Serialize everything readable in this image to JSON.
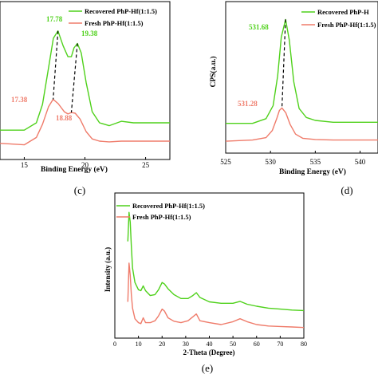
{
  "chart_data": [
    {
      "type": "line",
      "panel_label": "(c)",
      "xlabel": "Binding Energy (eV)",
      "ylabel": "",
      "xlim": [
        13,
        27
      ],
      "xticks": [
        "15",
        "20",
        "25"
      ],
      "legend_position": "top-right",
      "series": [
        {
          "name": "Recovered PhP-Hf(1:1.5)",
          "color": "#4fd11b",
          "x": [
            13,
            15,
            16,
            16.5,
            17.0,
            17.4,
            17.78,
            18.2,
            18.6,
            18.88,
            19.1,
            19.38,
            19.7,
            20.1,
            20.6,
            21.2,
            22,
            23,
            24,
            25,
            26,
            27
          ],
          "y": [
            0.2,
            0.2,
            0.3,
            0.55,
            1.05,
            1.45,
            1.55,
            1.35,
            1.2,
            1.2,
            1.32,
            1.38,
            1.25,
            0.85,
            0.45,
            0.3,
            0.26,
            0.32,
            0.3,
            0.3,
            0.3,
            0.3
          ]
        },
        {
          "name": "Fresh PhP-Hf(1:1.5)",
          "color": "#ef7b6a",
          "x": [
            13,
            15,
            16,
            16.5,
            17.0,
            17.38,
            17.8,
            18.3,
            18.6,
            18.88,
            19.2,
            19.6,
            20.1,
            20.6,
            21.2,
            22,
            23,
            24,
            25,
            26,
            27
          ],
          "y": [
            0.02,
            0.0,
            0.1,
            0.28,
            0.52,
            0.62,
            0.56,
            0.45,
            0.42,
            0.44,
            0.43,
            0.35,
            0.18,
            0.08,
            0.05,
            0.04,
            0.05,
            0.05,
            0.05,
            0.05,
            0.05
          ]
        }
      ],
      "annotations": [
        {
          "text": "17.78",
          "series": "Recovered PhP-Hf(1:1.5)"
        },
        {
          "text": "19.38",
          "series": "Recovered PhP-Hf(1:1.5)"
        },
        {
          "text": "17.38",
          "series": "Fresh PhP-Hf(1:1.5)"
        },
        {
          "text": "18.88",
          "series": "Fresh PhP-Hf(1:1.5)"
        }
      ]
    },
    {
      "type": "line",
      "panel_label": "(d)",
      "xlabel": "Binding Energy (eV)",
      "ylabel": "CPS(a.u.)",
      "xlim": [
        525,
        542
      ],
      "xticks": [
        "525",
        "530",
        "535",
        "540"
      ],
      "legend_position": "top-right",
      "series": [
        {
          "name": "Recovered PhP-H",
          "color": "#4fd11b",
          "x": [
            525,
            528,
            529.5,
            530.3,
            530.8,
            531.2,
            531.68,
            532.1,
            532.6,
            533.2,
            534,
            535,
            537,
            540,
            542
          ],
          "y": [
            0.3,
            0.3,
            0.38,
            0.6,
            1.1,
            1.75,
            2.05,
            1.7,
            1.0,
            0.55,
            0.4,
            0.35,
            0.32,
            0.32,
            0.32
          ]
        },
        {
          "name": "Fresh PhP-Hf(1:1.5)",
          "color": "#ef7b6a",
          "x": [
            525,
            528,
            529.5,
            530.2,
            530.7,
            531.0,
            531.28,
            531.7,
            532.2,
            532.8,
            533.6,
            535,
            537,
            540,
            542
          ],
          "y": [
            0.0,
            0.02,
            0.06,
            0.18,
            0.38,
            0.52,
            0.56,
            0.48,
            0.28,
            0.12,
            0.05,
            0.03,
            0.02,
            0.02,
            0.02
          ]
        }
      ],
      "annotations": [
        {
          "text": "531.68",
          "series": "Recovered PhP-H"
        },
        {
          "text": "531.28",
          "series": "Fresh PhP-Hf(1:1.5)"
        }
      ]
    },
    {
      "type": "line",
      "panel_label": "(e)",
      "xlabel": "2-Theta (Degree)",
      "ylabel": "Intensity (a.u.)",
      "xlim": [
        0,
        80
      ],
      "xticks": [
        "0",
        "10",
        "20",
        "30",
        "40",
        "50",
        "60",
        "70",
        "80"
      ],
      "legend_position": "top-left",
      "series": [
        {
          "name": "Recovered PhP-Hf(1:1.5)",
          "color": "#4fd11b",
          "x": [
            5.5,
            6.0,
            6.5,
            7.0,
            7.5,
            8.5,
            10,
            11,
            12,
            13,
            15,
            17,
            18.5,
            20,
            21,
            22.5,
            25,
            28,
            31,
            33,
            34.5,
            36,
            40,
            45,
            50,
            53,
            56,
            60,
            65,
            70,
            75,
            80
          ],
          "y": [
            1.8,
            2.4,
            2.2,
            1.7,
            1.25,
            0.95,
            0.8,
            0.78,
            0.88,
            0.78,
            0.68,
            0.7,
            0.8,
            0.95,
            0.92,
            0.82,
            0.7,
            0.62,
            0.62,
            0.68,
            0.74,
            0.64,
            0.55,
            0.52,
            0.52,
            0.56,
            0.5,
            0.46,
            0.42,
            0.4,
            0.38,
            0.37
          ]
        },
        {
          "name": "Fresh PhP-Hf(1:1.5)",
          "color": "#ef7b6a",
          "x": [
            5.5,
            6.0,
            6.5,
            7.0,
            7.5,
            8.5,
            10,
            11,
            12,
            13,
            15,
            17,
            18.5,
            20,
            21,
            22.5,
            25,
            28,
            31,
            33,
            34.5,
            36,
            40,
            45,
            50,
            53,
            56,
            60,
            65,
            70,
            75,
            80
          ],
          "y": [
            0.55,
            1.35,
            1.1,
            0.7,
            0.42,
            0.2,
            0.12,
            0.1,
            0.22,
            0.12,
            0.12,
            0.16,
            0.26,
            0.4,
            0.36,
            0.22,
            0.15,
            0.12,
            0.16,
            0.24,
            0.3,
            0.16,
            0.12,
            0.08,
            0.14,
            0.2,
            0.14,
            0.08,
            0.05,
            0.04,
            0.03,
            0.02
          ]
        }
      ]
    }
  ]
}
